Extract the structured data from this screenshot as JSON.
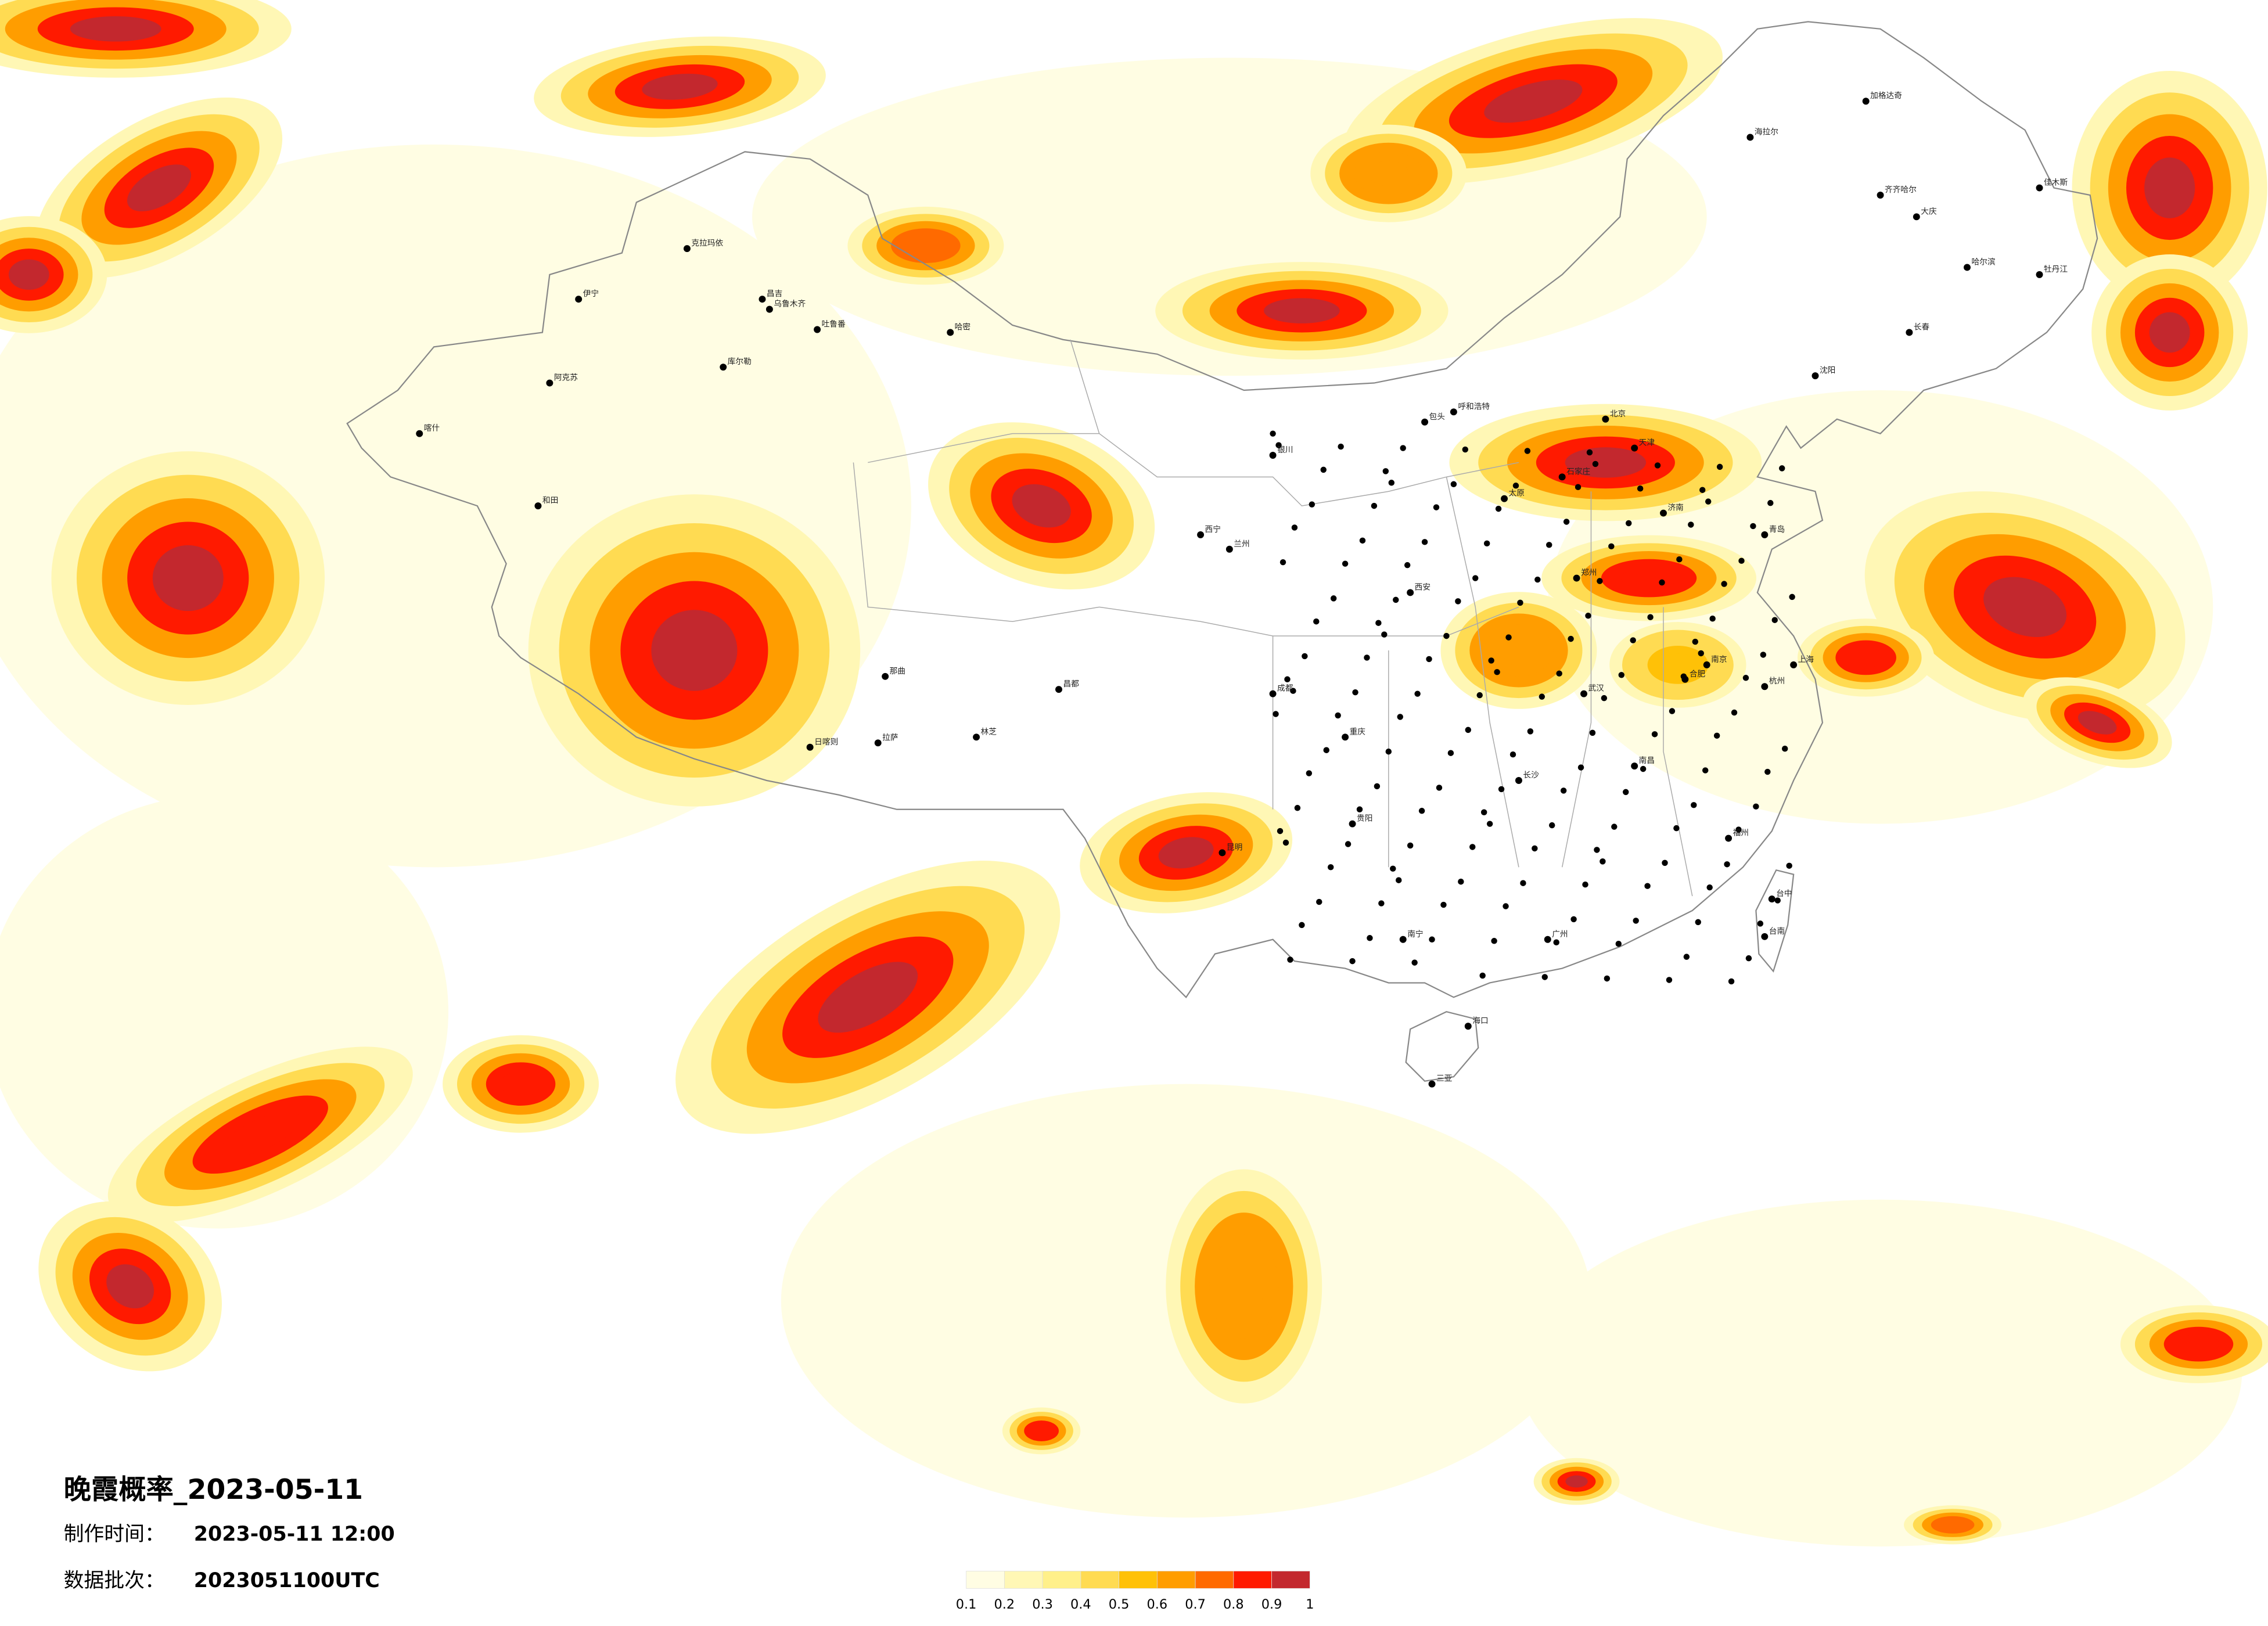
{
  "title": "晚霞概率_2023-05-11",
  "info": [
    {
      "label": "制作时间：",
      "value": "2023-05-11 12:00"
    },
    {
      "label": "数据批次：",
      "value": "2023051100UTC"
    }
  ],
  "legend": {
    "colors": [
      "#fffde3",
      "#fff7b5",
      "#fff08a",
      "#ffdb52",
      "#ffc107",
      "#ff9d00",
      "#ff6a00",
      "#ff1a00",
      "#c3282e"
    ],
    "ticks": [
      0.1,
      0.2,
      0.3,
      0.4,
      0.5,
      0.6,
      0.7,
      0.8,
      0.9,
      1
    ]
  },
  "cities": [
    "克拉玛依",
    "伊宁",
    "昌吉",
    "乌鲁木齐",
    "吐鲁番",
    "哈密",
    "库尔勒",
    "阿克苏",
    "喀什",
    "和田",
    "那曲",
    "日喀则",
    "拉萨",
    "林芝",
    "昌都",
    "西宁",
    "兰州",
    "银川",
    "呼和浩特",
    "包头",
    "北京",
    "天津",
    "石家庄",
    "太原",
    "济南",
    "郑州",
    "西安",
    "成都",
    "重庆",
    "贵阳",
    "昆明",
    "南宁",
    "广州",
    "海口",
    "三亚",
    "长沙",
    "武汉",
    "南昌",
    "福州",
    "杭州",
    "上海",
    "南京",
    "合肥",
    "青岛",
    "沈阳",
    "长春",
    "哈尔滨",
    "齐齐哈尔",
    "海拉尔",
    "大庆",
    "佳木斯",
    "牡丹江",
    "加格达奇",
    "台中",
    "台南"
  ]
}
